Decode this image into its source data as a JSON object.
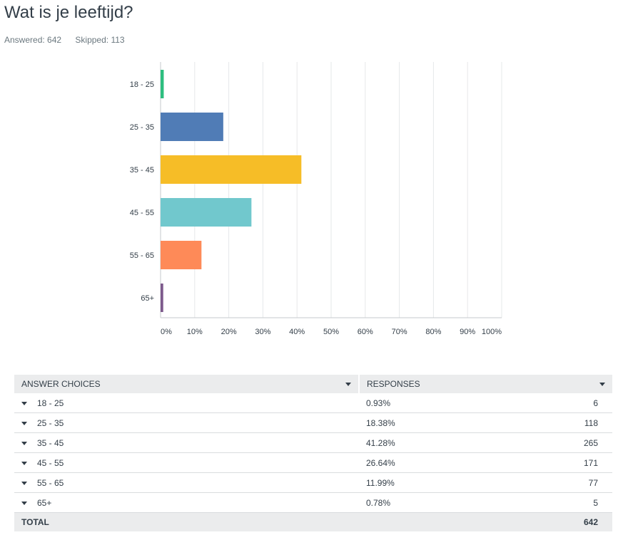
{
  "header": {
    "title": "Wat is je leeftijd?",
    "answered": "Answered: 642",
    "skipped": "Skipped: 113"
  },
  "chart_data": {
    "type": "bar",
    "orientation": "horizontal",
    "categories": [
      "18 - 25",
      "25 - 35",
      "35 - 45",
      "45 - 55",
      "55 - 65",
      "65+"
    ],
    "values": [
      0.93,
      18.38,
      41.28,
      26.64,
      11.99,
      0.78
    ],
    "colors": [
      "#2dbe7f",
      "#507cb6",
      "#f6bd27",
      "#71c8cd",
      "#fe8a58",
      "#7d5a8c"
    ],
    "xlim": [
      0,
      100
    ],
    "x_ticks": [
      "0%",
      "10%",
      "20%",
      "30%",
      "40%",
      "50%",
      "60%",
      "70%",
      "80%",
      "90%",
      "100%"
    ],
    "grid": true,
    "legend": "none"
  },
  "table": {
    "headers": [
      "ANSWER CHOICES",
      "RESPONSES"
    ],
    "rows": [
      {
        "choice": "18 - 25",
        "percent": "0.93%",
        "count": "6"
      },
      {
        "choice": "25 - 35",
        "percent": "18.38%",
        "count": "118"
      },
      {
        "choice": "35 - 45",
        "percent": "41.28%",
        "count": "265"
      },
      {
        "choice": "45 - 55",
        "percent": "26.64%",
        "count": "171"
      },
      {
        "choice": "55 - 65",
        "percent": "11.99%",
        "count": "77"
      },
      {
        "choice": "65+",
        "percent": "0.78%",
        "count": "5"
      }
    ],
    "total_label": "TOTAL",
    "total_count": "642"
  }
}
